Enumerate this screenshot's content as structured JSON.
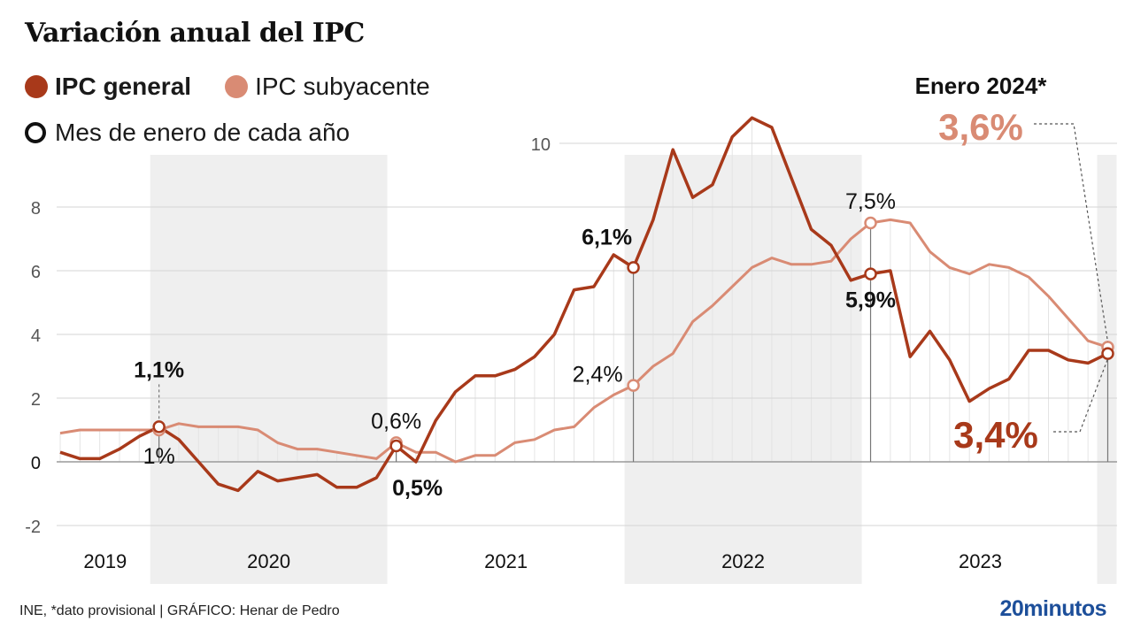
{
  "title": "Variación anual del IPC",
  "legend": {
    "general": "IPC general",
    "subyacente": "IPC subyacente",
    "january": "Mes de enero de cada año"
  },
  "colors": {
    "general": "#a8391a",
    "subyacente": "#d98b74",
    "band": "#efefef",
    "grid": "#d6d6d6",
    "brand": "#1d4f9a"
  },
  "footer": {
    "source": "INE, *dato provisional  |  GRÁFICO: Henar de Pedro",
    "brand": "20minutos"
  },
  "chart_data": {
    "type": "line",
    "title": "Variación anual del IPC",
    "xlabel": "",
    "ylabel": "",
    "ylim": [
      -2,
      11
    ],
    "yticks": [
      -2,
      0,
      2,
      4,
      6,
      8,
      10
    ],
    "grid": true,
    "legend_position": "top-left",
    "start_month": "2019-08",
    "year_labels": [
      "2019",
      "2020",
      "2021",
      "2022",
      "2023"
    ],
    "shaded_years": [
      "2020",
      "2022"
    ],
    "x": [
      "2019-08",
      "2019-09",
      "2019-10",
      "2019-11",
      "2019-12",
      "2020-01",
      "2020-02",
      "2020-03",
      "2020-04",
      "2020-05",
      "2020-06",
      "2020-07",
      "2020-08",
      "2020-09",
      "2020-10",
      "2020-11",
      "2020-12",
      "2021-01",
      "2021-02",
      "2021-03",
      "2021-04",
      "2021-05",
      "2021-06",
      "2021-07",
      "2021-08",
      "2021-09",
      "2021-10",
      "2021-11",
      "2021-12",
      "2022-01",
      "2022-02",
      "2022-03",
      "2022-04",
      "2022-05",
      "2022-06",
      "2022-07",
      "2022-08",
      "2022-09",
      "2022-10",
      "2022-11",
      "2022-12",
      "2023-01",
      "2023-02",
      "2023-03",
      "2023-04",
      "2023-05",
      "2023-06",
      "2023-07",
      "2023-08",
      "2023-09",
      "2023-10",
      "2023-11",
      "2023-12",
      "2024-01"
    ],
    "series": [
      {
        "name": "IPC general",
        "values": [
          0.3,
          0.1,
          0.1,
          0.4,
          0.8,
          1.1,
          0.7,
          0.0,
          -0.7,
          -0.9,
          -0.3,
          -0.6,
          -0.5,
          -0.4,
          -0.8,
          -0.8,
          -0.5,
          0.5,
          0.0,
          1.3,
          2.2,
          2.7,
          2.7,
          2.9,
          3.3,
          4.0,
          5.4,
          5.5,
          6.5,
          6.1,
          7.6,
          9.8,
          8.3,
          8.7,
          10.2,
          10.8,
          10.5,
          8.9,
          7.3,
          6.8,
          5.7,
          5.9,
          6.0,
          3.3,
          4.1,
          3.2,
          1.9,
          2.3,
          2.6,
          3.5,
          3.5,
          3.2,
          3.1,
          3.4
        ]
      },
      {
        "name": "IPC subyacente",
        "values": [
          0.9,
          1.0,
          1.0,
          1.0,
          1.0,
          1.0,
          1.2,
          1.1,
          1.1,
          1.1,
          1.0,
          0.6,
          0.4,
          0.4,
          0.3,
          0.2,
          0.1,
          0.6,
          0.3,
          0.3,
          0.0,
          0.2,
          0.2,
          0.6,
          0.7,
          1.0,
          1.1,
          1.7,
          2.1,
          2.4,
          3.0,
          3.4,
          4.4,
          4.9,
          5.5,
          6.1,
          6.4,
          6.2,
          6.2,
          6.3,
          7.0,
          7.5,
          7.6,
          7.5,
          6.6,
          6.1,
          5.9,
          6.2,
          6.1,
          5.8,
          5.2,
          4.5,
          3.8,
          3.6
        ]
      }
    ],
    "annotations": [
      {
        "series": "IPC general",
        "x": "2020-01",
        "label": "1,1%",
        "position": "above",
        "bold": true
      },
      {
        "series": "IPC subyacente",
        "x": "2020-01",
        "label": "1%",
        "position": "below",
        "bold": false
      },
      {
        "series": "IPC subyacente",
        "x": "2021-01",
        "label": "0,6%",
        "position": "above",
        "bold": false
      },
      {
        "series": "IPC general",
        "x": "2021-01",
        "label": "0,5%",
        "position": "below",
        "bold": true
      },
      {
        "series": "IPC general",
        "x": "2022-01",
        "label": "6,1%",
        "position": "above-left",
        "bold": true
      },
      {
        "series": "IPC subyacente",
        "x": "2022-01",
        "label": "2,4%",
        "position": "left",
        "bold": false
      },
      {
        "series": "IPC subyacente",
        "x": "2023-01",
        "label": "7,5%",
        "position": "above",
        "bold": false
      },
      {
        "series": "IPC general",
        "x": "2023-01",
        "label": "5,9%",
        "position": "below",
        "bold": true
      }
    ],
    "callout": {
      "heading": "Enero 2024*",
      "subyacente_label": "3,6%",
      "general_label": "3,4%"
    }
  }
}
